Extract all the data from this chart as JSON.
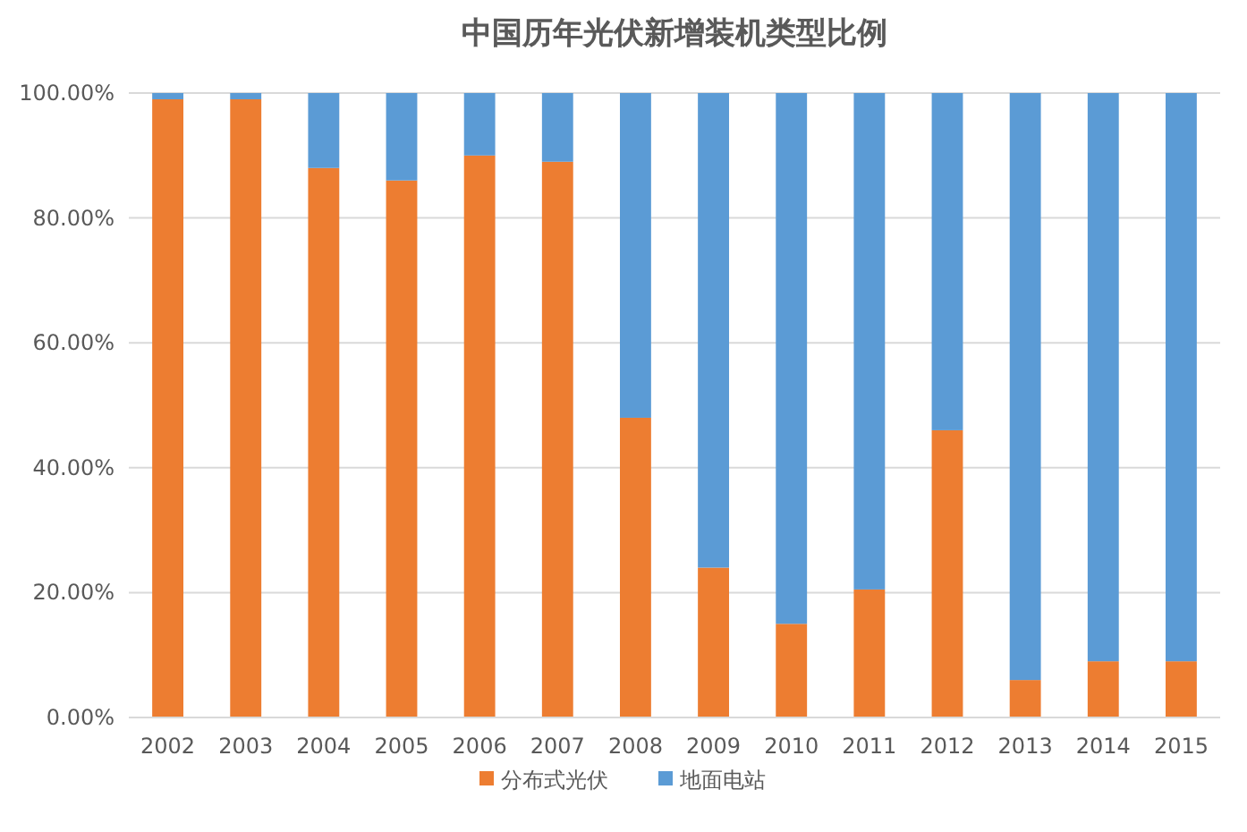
{
  "chart_data": {
    "type": "bar",
    "title": "中国历年光伏新增装机类型比例",
    "categories": [
      "2002",
      "2003",
      "2004",
      "2005",
      "2006",
      "2007",
      "2008",
      "2009",
      "2010",
      "2011",
      "2012",
      "2013",
      "2014",
      "2015"
    ],
    "stacked": true,
    "series": [
      {
        "name": "分布式光伏",
        "color": "#ed7d31",
        "values": [
          99,
          99,
          88,
          86,
          90,
          89,
          48,
          24,
          15,
          20.5,
          46,
          6,
          9,
          9
        ]
      },
      {
        "name": "地面电站",
        "color": "#5b9bd5",
        "values": [
          1,
          1,
          12,
          14,
          10,
          11,
          52,
          76,
          85,
          79.5,
          54,
          94,
          91,
          91
        ]
      }
    ],
    "ylim": [
      0,
      100
    ],
    "yticks": [
      {
        "value": 0,
        "label": "0.00%"
      },
      {
        "value": 20,
        "label": "20.00%"
      },
      {
        "value": 40,
        "label": "40.00%"
      },
      {
        "value": 60,
        "label": "60.00%"
      },
      {
        "value": 80,
        "label": "80.00%"
      },
      {
        "value": 100,
        "label": "100.00%"
      }
    ],
    "grid": "y",
    "legend": "bottom"
  }
}
